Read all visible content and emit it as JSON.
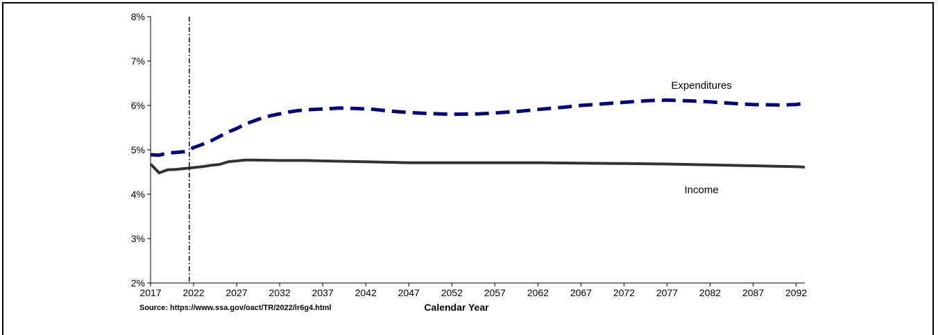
{
  "chart_data": {
    "type": "line",
    "title": "",
    "xlabel": "Calendar Year",
    "ylabel": "",
    "source": "Source: https://www.ssa.gov/oact/TR/2022/lr6g4.html",
    "xlim": [
      2017,
      2093
    ],
    "ylim": [
      2,
      8
    ],
    "x_ticks": [
      2017,
      2022,
      2027,
      2032,
      2037,
      2042,
      2047,
      2052,
      2057,
      2062,
      2067,
      2072,
      2077,
      2082,
      2087,
      2092
    ],
    "y_ticks": [
      {
        "value": 2,
        "label": "2%"
      },
      {
        "value": 3,
        "label": "3%"
      },
      {
        "value": 4,
        "label": "4%"
      },
      {
        "value": 5,
        "label": "5%"
      },
      {
        "value": 6,
        "label": "6%"
      },
      {
        "value": 7,
        "label": "7%"
      },
      {
        "value": 8,
        "label": "8%"
      }
    ],
    "grid": false,
    "vertical_marker": {
      "x": 2021.5,
      "style": "dash-dot"
    },
    "series": [
      {
        "name": "Expenditures",
        "color": "#000080",
        "style": "dashed",
        "label_at": [
          2081,
          6.45
        ],
        "points": [
          [
            2017,
            4.89
          ],
          [
            2018,
            4.88
          ],
          [
            2019,
            4.93
          ],
          [
            2020,
            4.94
          ],
          [
            2021,
            4.96
          ],
          [
            2022,
            5.05
          ],
          [
            2023,
            5.12
          ],
          [
            2024,
            5.2
          ],
          [
            2025,
            5.3
          ],
          [
            2026,
            5.4
          ],
          [
            2027,
            5.48
          ],
          [
            2028,
            5.58
          ],
          [
            2029,
            5.65
          ],
          [
            2030,
            5.72
          ],
          [
            2031,
            5.77
          ],
          [
            2032,
            5.81
          ],
          [
            2033,
            5.85
          ],
          [
            2034,
            5.88
          ],
          [
            2035,
            5.9
          ],
          [
            2037,
            5.92
          ],
          [
            2039,
            5.94
          ],
          [
            2041,
            5.93
          ],
          [
            2043,
            5.91
          ],
          [
            2045,
            5.87
          ],
          [
            2047,
            5.84
          ],
          [
            2049,
            5.82
          ],
          [
            2052,
            5.8
          ],
          [
            2055,
            5.81
          ],
          [
            2057,
            5.83
          ],
          [
            2060,
            5.87
          ],
          [
            2062,
            5.91
          ],
          [
            2065,
            5.96
          ],
          [
            2067,
            6.0
          ],
          [
            2070,
            6.04
          ],
          [
            2072,
            6.07
          ],
          [
            2075,
            6.11
          ],
          [
            2077,
            6.12
          ],
          [
            2080,
            6.1
          ],
          [
            2082,
            6.08
          ],
          [
            2085,
            6.04
          ],
          [
            2087,
            6.02
          ],
          [
            2090,
            6.01
          ],
          [
            2092,
            6.02
          ],
          [
            2093,
            6.05
          ]
        ]
      },
      {
        "name": "Income",
        "color": "#333333",
        "style": "solid",
        "label_at": [
          2081,
          4.1
        ],
        "points": [
          [
            2017,
            4.68
          ],
          [
            2018,
            4.48
          ],
          [
            2019,
            4.55
          ],
          [
            2020,
            4.56
          ],
          [
            2021,
            4.58
          ],
          [
            2022,
            4.6
          ],
          [
            2023,
            4.62
          ],
          [
            2024,
            4.65
          ],
          [
            2025,
            4.67
          ],
          [
            2026,
            4.73
          ],
          [
            2027,
            4.75
          ],
          [
            2028,
            4.77
          ],
          [
            2029,
            4.77
          ],
          [
            2032,
            4.76
          ],
          [
            2035,
            4.76
          ],
          [
            2037,
            4.75
          ],
          [
            2042,
            4.73
          ],
          [
            2047,
            4.71
          ],
          [
            2052,
            4.71
          ],
          [
            2057,
            4.71
          ],
          [
            2062,
            4.71
          ],
          [
            2067,
            4.7
          ],
          [
            2072,
            4.69
          ],
          [
            2077,
            4.68
          ],
          [
            2082,
            4.66
          ],
          [
            2087,
            4.64
          ],
          [
            2092,
            4.62
          ],
          [
            2093,
            4.61
          ]
        ]
      }
    ]
  }
}
